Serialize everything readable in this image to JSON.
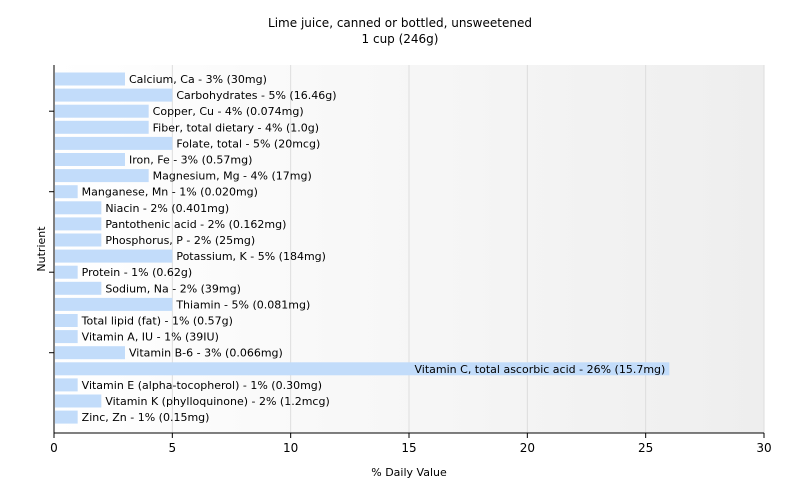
{
  "chart_data": {
    "type": "bar",
    "orientation": "horizontal",
    "title": "Lime juice, canned or bottled, unsweetened",
    "subtitle": "1 cup (246g)",
    "xlabel": "% Daily Value",
    "ylabel": "Nutrient",
    "xlim": [
      0,
      30
    ],
    "xticks": [
      0,
      5,
      10,
      15,
      20,
      25,
      30
    ],
    "grid": true,
    "bar_color": "#c2dcfa",
    "categories": [
      "Calcium, Ca",
      "Carbohydrates",
      "Copper, Cu",
      "Fiber, total dietary",
      "Folate, total",
      "Iron, Fe",
      "Magnesium, Mg",
      "Manganese, Mn",
      "Niacin",
      "Pantothenic acid",
      "Phosphorus, P",
      "Potassium, K",
      "Protein",
      "Sodium, Na",
      "Thiamin",
      "Total lipid (fat)",
      "Vitamin A, IU",
      "Vitamin B-6",
      "Vitamin C, total ascorbic acid",
      "Vitamin E (alpha-tocopherol)",
      "Vitamin K (phylloquinone)",
      "Zinc, Zn"
    ],
    "values": [
      3,
      5,
      4,
      4,
      5,
      3,
      4,
      1,
      2,
      2,
      2,
      5,
      1,
      2,
      5,
      1,
      1,
      3,
      26,
      1,
      2,
      1
    ],
    "labels": [
      "Calcium, Ca - 3% (30mg)",
      "Carbohydrates - 5% (16.46g)",
      "Copper, Cu - 4% (0.074mg)",
      "Fiber, total dietary - 4% (1.0g)",
      "Folate, total - 5% (20mcg)",
      "Iron, Fe - 3% (0.57mg)",
      "Magnesium, Mg - 4% (17mg)",
      "Manganese, Mn - 1% (0.020mg)",
      "Niacin - 2% (0.401mg)",
      "Pantothenic acid - 2% (0.162mg)",
      "Phosphorus, P - 2% (25mg)",
      "Potassium, K - 5% (184mg)",
      "Protein - 1% (0.62g)",
      "Sodium, Na - 2% (39mg)",
      "Thiamin - 5% (0.081mg)",
      "Total lipid (fat) - 1% (0.57g)",
      "Vitamin A, IU - 1% (39IU)",
      "Vitamin B-6 - 3% (0.066mg)",
      "Vitamin C, total ascorbic acid - 26% (15.7mg)",
      "Vitamin E (alpha-tocopherol) - 1% (0.30mg)",
      "Vitamin K (phylloquinone) - 2% (1.2mcg)",
      "Zinc, Zn - 1% (0.15mg)"
    ]
  }
}
